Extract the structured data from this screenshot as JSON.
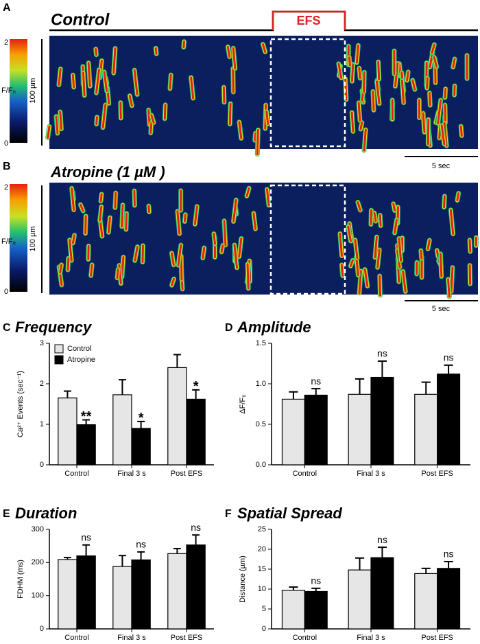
{
  "image_panels": [
    {
      "panel": "A",
      "title": "Control",
      "stimulus": "EFS",
      "colorbar_label": "F/F₀",
      "colorbar_ticks": [
        "2",
        "0"
      ],
      "space_scale": "100 µm",
      "time_scale": "5 sec"
    },
    {
      "panel": "B",
      "title": "Atropine (1 µM )",
      "colorbar_label": "F/F₀",
      "colorbar_ticks": [
        "2",
        "0"
      ],
      "space_scale": "100 µm",
      "time_scale": "5 sec"
    }
  ],
  "chart_data": [
    {
      "type": "bar",
      "panel": "C",
      "title": "Frequency",
      "ylabel": "Ca²⁺ Events (sec⁻¹)",
      "categories": [
        "Control",
        "Final 3 s",
        "Post EFS"
      ],
      "series": [
        {
          "name": "Control",
          "color": "#e6e6e6",
          "values": [
            1.65,
            1.73,
            2.4
          ],
          "errors": [
            0.17,
            0.37,
            0.32
          ]
        },
        {
          "name": "Atropine",
          "color": "#000000",
          "values": [
            0.99,
            0.9,
            1.62
          ],
          "errors": [
            0.12,
            0.17,
            0.23
          ],
          "annotations": [
            "**",
            "*",
            "*"
          ]
        }
      ],
      "ylim": [
        0,
        3
      ],
      "yticks": [
        0,
        1,
        2,
        3
      ],
      "legend": "upper left"
    },
    {
      "type": "bar",
      "panel": "D",
      "title": "Amplitude",
      "ylabel": "ΔF/F₀",
      "categories": [
        "Control",
        "Final 3 s",
        "Post EFS"
      ],
      "series": [
        {
          "color": "#e6e6e6",
          "values": [
            0.81,
            0.87,
            0.87
          ],
          "errors": [
            0.09,
            0.19,
            0.15
          ]
        },
        {
          "color": "#000000",
          "values": [
            0.86,
            1.08,
            1.12
          ],
          "errors": [
            0.08,
            0.2,
            0.11
          ],
          "annotations": [
            "ns",
            "ns",
            "ns"
          ]
        }
      ],
      "ylim": [
        0,
        1.5
      ],
      "yticks": [
        {
          "value": 0,
          "label": "0.0"
        },
        0.5,
        {
          "value": 1,
          "label": "1.0"
        },
        1.5
      ]
    },
    {
      "type": "bar",
      "panel": "E",
      "title": "Duration",
      "ylabel": "FDHM (ms)",
      "categories": [
        "Control",
        "Final 3 s",
        "Post EFS"
      ],
      "series": [
        {
          "color": "#e6e6e6",
          "values": [
            209,
            188,
            227
          ],
          "errors": [
            6,
            33,
            15
          ]
        },
        {
          "color": "#000000",
          "values": [
            220,
            208,
            253
          ],
          "errors": [
            33,
            24,
            30
          ],
          "annotations": [
            "ns",
            "ns",
            "ns"
          ]
        }
      ],
      "ylim": [
        0,
        300
      ],
      "yticks": [
        0,
        100,
        200,
        300
      ]
    },
    {
      "type": "bar",
      "panel": "F",
      "title": "Spatial Spread",
      "ylabel": "Distance (µm)",
      "categories": [
        "Control",
        "Final 3 s",
        "Post EFS"
      ],
      "series": [
        {
          "color": "#e6e6e6",
          "values": [
            9.7,
            14.8,
            13.9
          ],
          "errors": [
            0.8,
            3,
            1.3
          ]
        },
        {
          "color": "#000000",
          "values": [
            9.4,
            17.9,
            15.2
          ],
          "errors": [
            0.8,
            2.6,
            1.7
          ],
          "annotations": [
            "ns",
            "ns",
            "ns"
          ]
        }
      ],
      "ylim": [
        0,
        25
      ],
      "yticks": [
        0,
        5,
        10,
        15,
        20,
        25
      ]
    }
  ]
}
